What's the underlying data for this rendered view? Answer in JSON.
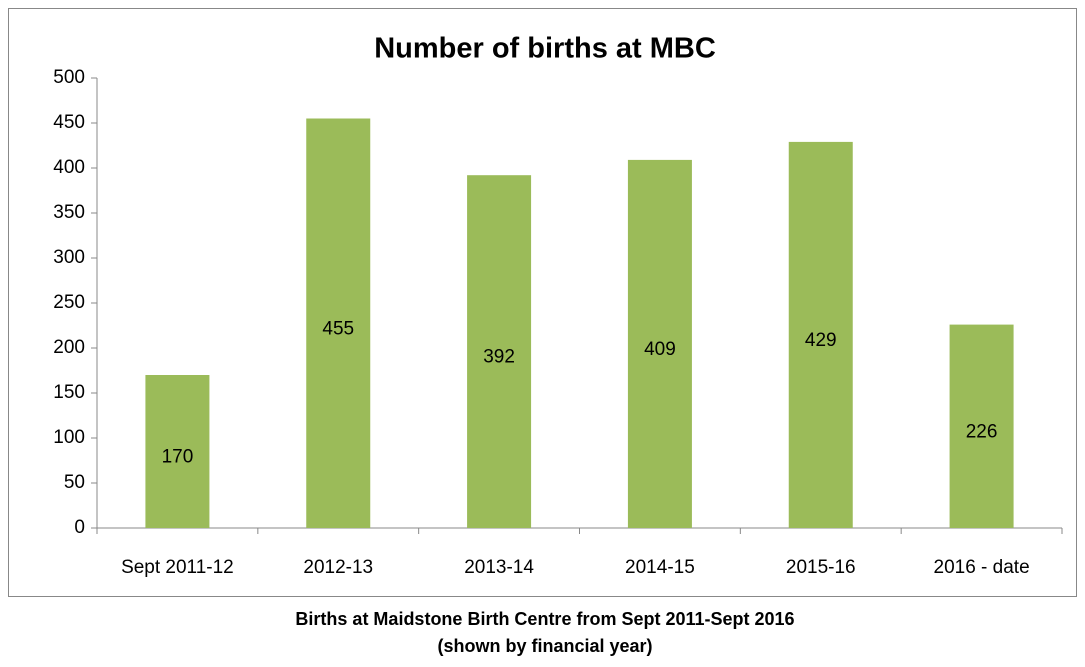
{
  "chart_data": {
    "type": "bar",
    "title": "Number of births at MBC",
    "categories": [
      "Sept 2011-12",
      "2012-13",
      "2013-14",
      "2014-15",
      "2015-16",
      "2016 - date"
    ],
    "values": [
      170,
      455,
      392,
      409,
      429,
      226
    ],
    "color": "#9bbb59",
    "ylim": [
      0,
      500
    ],
    "yticks": [
      0,
      50,
      100,
      150,
      200,
      250,
      300,
      350,
      400,
      450,
      500
    ],
    "grid": false,
    "caption": [
      "Births at Maidstone Birth Centre from Sept 2011-Sept 2016",
      "(shown by financial year)"
    ]
  }
}
